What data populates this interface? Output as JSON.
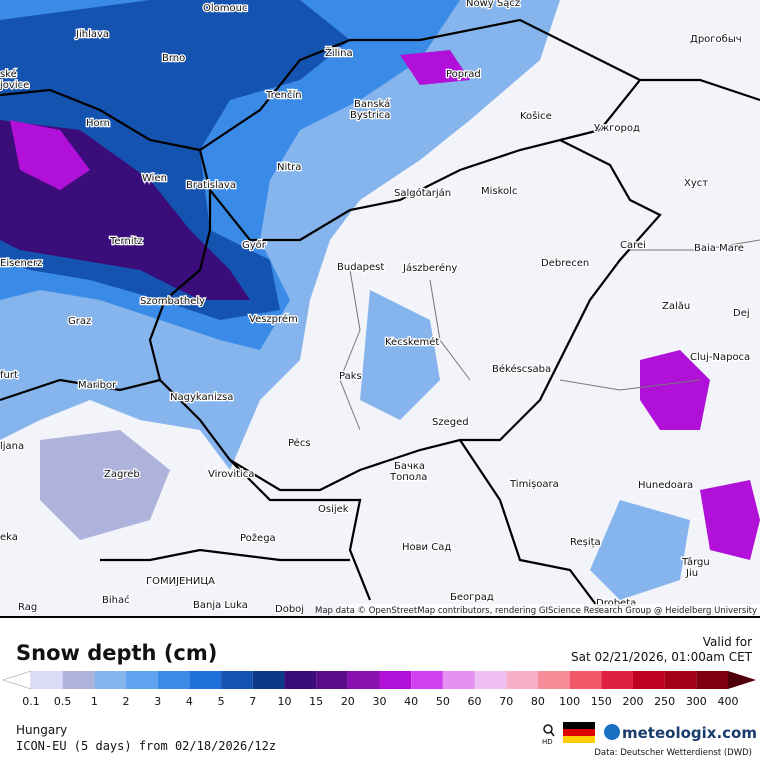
{
  "map": {
    "attribution": "Map data © OpenStreetMap contributors, rendering GIScience Research Group @ Heidelberg University",
    "places": [
      "Olomouc",
      "Nowy Sącz",
      "Дрогобыч",
      "Jihlava",
      "Brno",
      "Žilina",
      "Poprad",
      "ské",
      "jovice",
      "Trenčín",
      "Banská",
      "Bystrica",
      "Horn",
      "Košice",
      "Ужгород",
      "Nitra",
      "Wien",
      "Bratislava",
      "Salgótarján",
      "Miskolc",
      "Хуст",
      "Ternitz",
      "Győr",
      "Carei",
      "Baia Mare",
      "Eisenerz",
      "Budapest",
      "Jászberény",
      "Debrecen",
      "Szombathely",
      "Zalău",
      "Graz",
      "Veszprém",
      "Dej",
      "Kecskemét",
      "Cluj-Napoca",
      "Békéscsaba",
      "Paks",
      "furt",
      "Maribor",
      "Nagykanizsa",
      "Szeged",
      "ljana",
      "Pécs",
      "Zagreb",
      "Virovitica",
      "Бачка",
      "Топола",
      "Timișoara",
      "Hunedoara",
      "Osijek",
      "eka",
      "Reșița",
      "Požega",
      "Нови Сад",
      "Târgu",
      "Jiu",
      "ГОМИЈЕНИЦА",
      "Bihać",
      "Banja Luka",
      "Doboj",
      "Београд",
      "Drobeta",
      "Rag"
    ]
  },
  "legend": {
    "title": "Snow depth (cm)",
    "labels": [
      "0.1",
      "0.5",
      "1",
      "2",
      "3",
      "4",
      "5",
      "7",
      "10",
      "15",
      "20",
      "30",
      "40",
      "50",
      "60",
      "70",
      "80",
      "100",
      "150",
      "200",
      "250",
      "300",
      "400"
    ],
    "colors": [
      "#d9dbf7",
      "#aeb3dc",
      "#86b4ec",
      "#5fa3f0",
      "#3a8ae8",
      "#1f6fd9",
      "#1553b0",
      "#0d3a88",
      "#3a0d7a",
      "#5a0c8a",
      "#8a10b0",
      "#b010d8",
      "#d040f0",
      "#e490f0",
      "#f0c0f4",
      "#f8b0c8",
      "#f88c98",
      "#f05868",
      "#e02040",
      "#c00020",
      "#a00018",
      "#800010"
    ],
    "low_color": "#ffffff",
    "high_color": "#500008"
  },
  "valid": {
    "label": "Valid for",
    "time": "Sat 02/21/2026, 01:00am CET"
  },
  "footer": {
    "region": "Hungary",
    "model": "ICON-EU (5 days) from 02/18/2026/12z",
    "hd": "HD",
    "brand": "meteologix.com",
    "source": "Data: Deutscher Wetterdienst (DWD)"
  }
}
